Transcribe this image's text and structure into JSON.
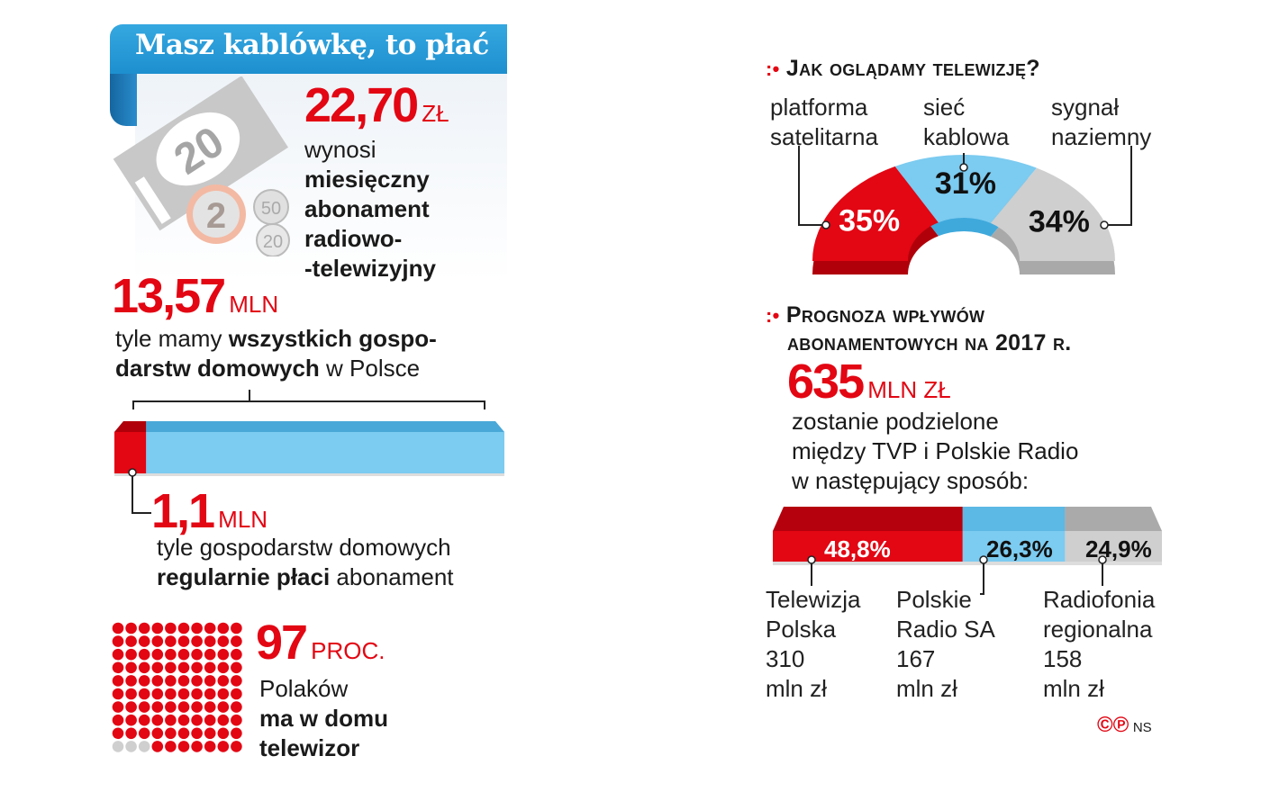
{
  "title": "Masz kablówkę, to płać",
  "fee": {
    "value": "22,70",
    "unit": "ZŁ",
    "lines": [
      "wynosi",
      "miesięczny",
      "abonament",
      "radiowo-",
      "-telewizyjny"
    ]
  },
  "banknote": {
    "note": "20",
    "coin1": "2",
    "coin2": "50",
    "coin3": "20"
  },
  "households": {
    "value": "13,57",
    "unit": "MLN",
    "line1_a": "tyle mamy ",
    "line1_b": "wszystkich gospo-",
    "line2_a": "darstw domowych",
    "line2_b": " w Polsce"
  },
  "payers": {
    "value": "1,1",
    "unit": "MLN",
    "line1": "tyle  gospodarstw domowych",
    "line2_a": "regularnie płaci",
    "line2_b": " abonament"
  },
  "tv": {
    "value": "97",
    "unit": "PROC.",
    "lines": [
      "Polaków",
      "ma w domu",
      "telewizor"
    ]
  },
  "watch": {
    "title": "Jak oglądamy telewizję?"
  },
  "forecast": {
    "title1": "Prognoza wpływów",
    "title2": "abonamentowych na 2017 r.",
    "value": "635",
    "unit": "MLN ZŁ",
    "lines": [
      "zostanie podzielone",
      "między TVP i Polskie Radio",
      "w następujący sposób:"
    ]
  },
  "credit": {
    "symbols": "©℗",
    "author": "NS"
  },
  "colors": {
    "red": "#e30613",
    "blue": "#7ccbf0",
    "grey": "#cfcfcf",
    "banner": "#2a9ad8"
  },
  "chart_data": [
    {
      "type": "pie",
      "title": "Jak oglądamy telewizję?",
      "shape": "semicircle",
      "categories": [
        "platforma satelitarna",
        "sieć kablowa",
        "sygnał naziemny"
      ],
      "labels": [
        [
          "platforma",
          "satelitarna"
        ],
        [
          "sieć",
          "kablowa"
        ],
        [
          "sygnał",
          "naziemny"
        ]
      ],
      "values": [
        35,
        31,
        34
      ],
      "value_labels": [
        "35%",
        "31%",
        "34%"
      ]
    },
    {
      "type": "bar",
      "stacked": true,
      "title": "Prognoza wpływów abonamentowych na 2017 r.",
      "categories": [
        "Telewizja Polska",
        "Polskie Radio SA",
        "Radiofonia regionalna"
      ],
      "values": [
        48.8,
        26.3,
        24.9
      ],
      "value_labels": [
        "48,8%",
        "26,3%",
        "24,9%"
      ],
      "labels": [
        [
          "Telewizja",
          "Polska",
          "310",
          "mln zł"
        ],
        [
          "Polskie",
          "Radio SA",
          "167",
          "mln zł"
        ],
        [
          "Radiofonia",
          "regionalna",
          "158",
          "mln zł"
        ]
      ],
      "amounts_mln_zl": [
        310,
        167,
        158
      ]
    },
    {
      "type": "bar",
      "stacked": true,
      "categories": [
        "regularnie płaci abonament",
        "wszystkie gospodarstwa"
      ],
      "values_mln": [
        1.1,
        13.57
      ]
    },
    {
      "type": "waffle",
      "total": 100,
      "filled": 97
    }
  ]
}
